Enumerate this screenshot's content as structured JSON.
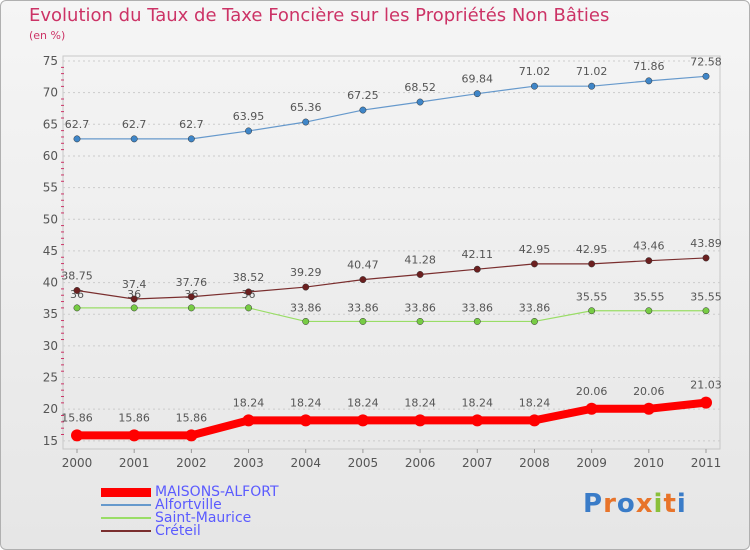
{
  "title": "Evolution du Taux de Taxe Foncière sur les Propriétés Non Bâties",
  "subtitle": "(en %)",
  "logo_text": "Proxiti",
  "chart_data": {
    "type": "line",
    "title": "Evolution du Taux de Taxe Foncière sur les Propriétés Non Bâties",
    "ylabel": "(en %)",
    "xlabel": "",
    "x": [
      "2000",
      "2001",
      "2002",
      "2003",
      "2004",
      "2005",
      "2006",
      "2007",
      "2008",
      "2009",
      "2010",
      "2011"
    ],
    "yticks": [
      15,
      20,
      25,
      30,
      35,
      40,
      45,
      50,
      55,
      60,
      65,
      70,
      75
    ],
    "ylim": [
      14.5,
      75
    ],
    "grid": "horizontal",
    "legend_position": "bottom-left",
    "series": [
      {
        "name": "MAISONS-ALFORT",
        "color": "#ff0000",
        "marker_color": "#ff0000",
        "values": [
          15.86,
          15.86,
          15.86,
          18.24,
          18.24,
          18.24,
          18.24,
          18.24,
          18.24,
          20.06,
          20.06,
          21.03
        ],
        "labels": [
          "15.86",
          "15.86",
          "15.86",
          "18.24",
          "18.24",
          "18.24",
          "18.24",
          "18.24",
          "18.24",
          "20.06",
          "20.06",
          "21.03"
        ]
      },
      {
        "name": "Alfortville",
        "color": "#6699cc",
        "marker_color": "#3f86c8",
        "values": [
          62.7,
          62.7,
          62.7,
          63.95,
          65.36,
          67.25,
          68.52,
          69.84,
          71.02,
          71.02,
          71.86,
          72.58
        ],
        "labels": [
          "62.7",
          "62.7",
          "62.7",
          "63.95",
          "65.36",
          "67.25",
          "68.52",
          "69.84",
          "71.02",
          "71.02",
          "71.86",
          "72.58"
        ]
      },
      {
        "name": "Saint-Maurice",
        "color": "#99dd66",
        "marker_color": "#77cc44",
        "values": [
          36,
          36,
          36,
          36,
          33.86,
          33.86,
          33.86,
          33.86,
          33.86,
          35.55,
          35.55,
          35.55
        ],
        "labels": [
          "36",
          "36",
          "36",
          "36",
          "33.86",
          "33.86",
          "33.86",
          "33.86",
          "33.86",
          "35.55",
          "35.55",
          "35.55"
        ]
      },
      {
        "name": "Créteil",
        "color": "#7a2e2e",
        "marker_color": "#6b1f1f",
        "values": [
          38.75,
          37.4,
          37.76,
          38.52,
          39.29,
          40.47,
          41.28,
          42.11,
          42.95,
          42.95,
          43.46,
          43.89
        ],
        "labels": [
          "38.75",
          "37.4",
          "37.76",
          "38.52",
          "39.29",
          "40.47",
          "41.28",
          "42.11",
          "42.95",
          "42.95",
          "43.46",
          "43.89"
        ]
      }
    ]
  }
}
